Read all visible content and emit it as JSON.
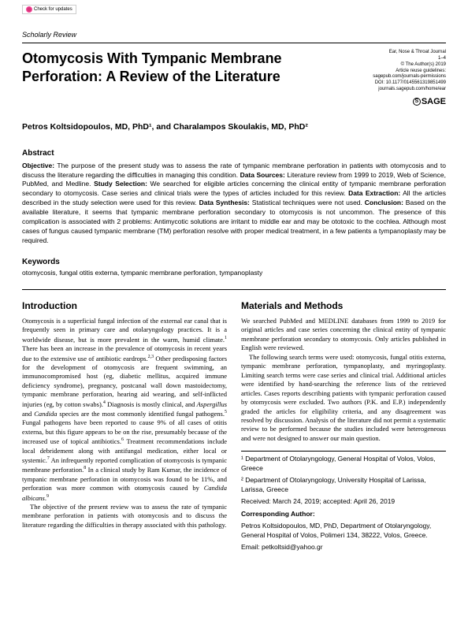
{
  "checkUpdates": "Check for updates",
  "reviewType": "Scholarly Review",
  "title": "Otomycosis With Tympanic Membrane Perforation: A Review of the Literature",
  "meta": {
    "journal": "Ear, Nose & Throat Journal",
    "pages": "1–4",
    "copyright": "© The Author(s) 2019",
    "reuse": "Article reuse guidelines:",
    "reuseUrl": "sagepub.com/journals-permissions",
    "doi": "DOI: 10.1177/0145561319851499",
    "journalUrl": "journals.sagepub.com/home/ear"
  },
  "sage": "SAGE",
  "authors": "Petros Koltsidopoulos, MD, PhD¹, and Charalampos Skoulakis, MD, PhD²",
  "abstractH": "Abstract",
  "abstract": {
    "objLabel": "Objective:",
    "obj": " The purpose of the present study was to assess the rate of tympanic membrane perforation in patients with otomycosis and to discuss the literature regarding the difficulties in managing this condition. ",
    "dsLabel": "Data Sources:",
    "ds": " Literature review from 1999 to 2019, Web of Science, PubMed, and Medline. ",
    "ssLabel": "Study Selection:",
    "ss": " We searched for eligible articles concerning the clinical entity of tympanic membrane perforation secondary to otomycosis. Case series and clinical trials were the types of articles included for this review. ",
    "deLabel": "Data Extraction:",
    "de": " All the articles described in the study selection were used for this review. ",
    "dsyLabel": "Data Synthesis:",
    "dsy": " Statistical techniques were not used. ",
    "conLabel": "Conclusion:",
    "con": " Based on the available literature, it seems that tympanic membrane perforation secondary to otomycosis is not uncommon. The presence of this complication is associated with 2 problems: Antimycotic solutions are irritant to middle ear and may be ototoxic to the cochlea. Although most cases of fungus caused tympanic membrane (TM) perforation resolve with proper medical treatment, in a few patients a tympanoplasty may be required."
  },
  "keywordsH": "Keywords",
  "keywords": "otomycosis, fungal otitis externa, tympanic membrane perforation, tympanoplasty",
  "introH": "Introduction",
  "intro": {
    "p1a": "Otomycosis is a superficial fungal infection of the external ear canal that is frequently seen in primary care and otolaryngology practices. It is a worldwide disease, but is more prevalent in the warm, humid climate.",
    "p1b": " There has been an increase in the prevalence of otomycosis in recent years due to the extensive use of antibiotic eardrops.",
    "p1c": " Other predisposing factors for the development of otomycosis are frequent swimming, an immunocompromised host (eg, diabetic mellitus, acquired immune deficiency syndrome), pregnancy, postcanal wall down mastoidectomy, tympanic membrane perforation, hearing aid wearing, and self-inflicted injuries (eg, by cotton swabs).",
    "p1d": " Diagnosis is mostly clinical, and ",
    "p1e": " species are the most commonly identified fungal pathogens.",
    "p1f": " Fungal pathogens have been reported to cause 9% of all cases of otitis externa, but this figure appears to be on the rise, presumably because of the increased use of topical antibiotics.",
    "p1g": " Treatment recommendations include local debridement along with antifungal medication, either local or systemic.",
    "p1h": " An infrequently reported complication of otomycosis is tympanic membrane perforation.",
    "p1i": " In a clinical study by Ram Kumar, the incidence of tympanic membrane perforation in otomycosis was found to be 11%, and perforation was more common with otomycosis caused by ",
    "asp": "Aspergillus",
    "cand": "Candida",
    "calb": "Candida albicans",
    "p2": "The objective of the present review was to assess the rate of tympanic membrane perforation in patients with otomycosis and to discuss the literature regarding the difficulties in therapy associated with this pathology.",
    "and": " and "
  },
  "methodsH": "Materials and Methods",
  "methods": {
    "p1": "We searched PubMed and MEDLINE databases from 1999 to 2019 for original articles and case series concerning the clinical entity of tympanic membrane perforation secondary to otomycosis. Only articles published in English were reviewed.",
    "p2": "The following search terms were used: otomycosis, fungal otitis externa, tympanic membrane perforation, tympanoplasty, and myringoplasty. Limiting search terms were case series and clinical trial. Additional articles were identified by hand-searching the reference lists of the retrieved articles. Cases reports describing patients with tympanic perforation caused by otomycosis were excluded. Two authors (P.K. and E.P.) independently graded the articles for eligibility criteria, and any disagreement was resolved by discussion. Analysis of the literature did not permit a systematic review to be performed because the studies included were heterogeneous and were not designed to answer our main question."
  },
  "footnotes": {
    "aff1": "¹ Department of Otolaryngology, General Hospital of Volos, Volos, Greece",
    "aff2": "² Department of Otolaryngology, University Hospital of Larissa, Larissa, Greece",
    "received": "Received: March 24, 2019; accepted: April 26, 2019",
    "corrH": "Corresponding Author:",
    "corr": "Petros Koltsidopoulos, MD, PhD, Department of Otolaryngology, General Hospital of Volos, Polimeri 134, 38222, Volos, Greece.",
    "email": "Email: petkoltsid@yahoo.gr"
  },
  "sup": {
    "s1": "1",
    "s23": "2,3",
    "s4": "4",
    "s5": "5",
    "s6": "6",
    "s7": "7",
    "s8": "8",
    "s9": "9",
    "dot": "."
  }
}
